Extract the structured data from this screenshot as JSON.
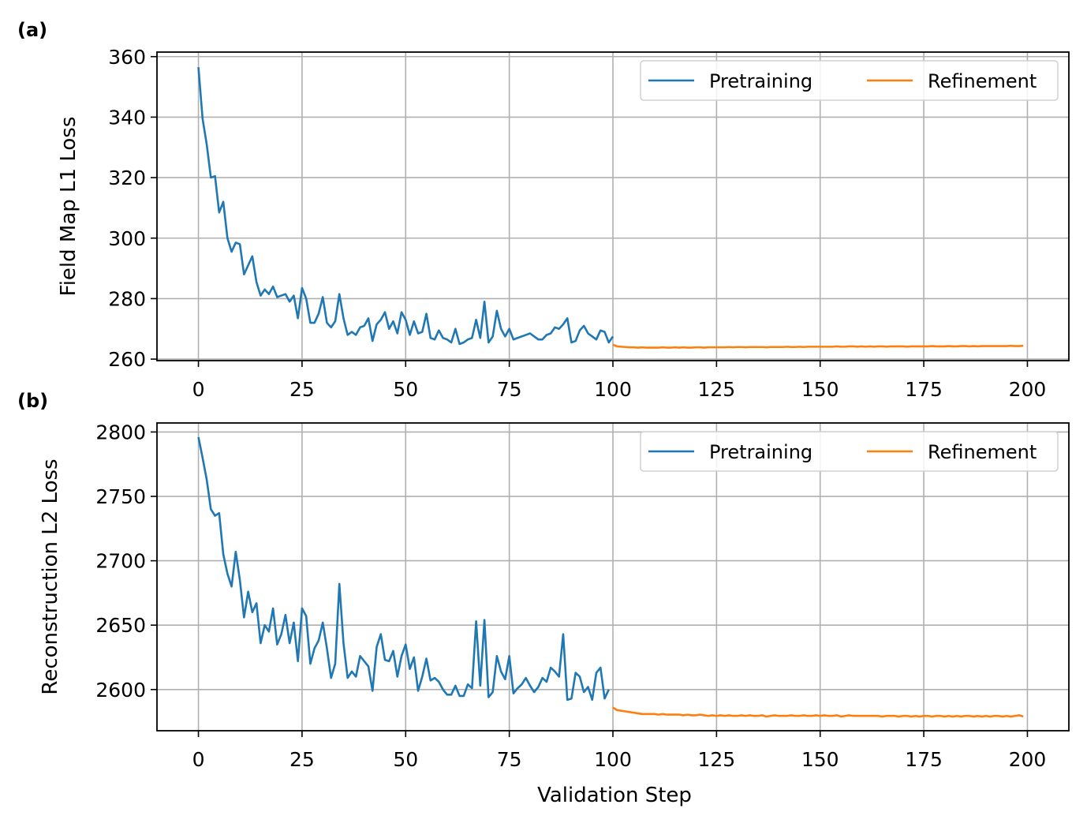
{
  "chart_data": [
    {
      "panel_label": "(a)",
      "type": "line",
      "title": "",
      "xlabel": "",
      "ylabel": "Field Map L1 Loss",
      "xlim": [
        -10,
        210
      ],
      "ylim": [
        259.5,
        361.5
      ],
      "xticks": [
        0,
        25,
        50,
        75,
        100,
        125,
        150,
        175,
        200
      ],
      "yticks": [
        260,
        280,
        300,
        320,
        340,
        360
      ],
      "grid": true,
      "legend": {
        "placement": "top-right",
        "columns": 2
      },
      "series": [
        {
          "name": "Pretraining",
          "color": "#1f77b4",
          "x_start": 0,
          "values": [
            356.5,
            339.5,
            331.0,
            320.0,
            320.5,
            308.5,
            312.0,
            300.0,
            295.5,
            298.5,
            298.0,
            288.0,
            291.0,
            294.0,
            285.5,
            281.0,
            283.0,
            281.5,
            284.0,
            280.5,
            281.0,
            281.5,
            279.0,
            281.0,
            273.5,
            283.5,
            280.0,
            272.0,
            272.0,
            275.0,
            280.5,
            272.0,
            270.5,
            272.5,
            281.5,
            273.5,
            268.0,
            269.0,
            268.0,
            270.5,
            271.0,
            273.5,
            266.0,
            271.5,
            273.0,
            275.5,
            270.0,
            272.5,
            268.5,
            275.5,
            273.0,
            268.0,
            272.5,
            268.5,
            269.0,
            275.0,
            267.0,
            266.5,
            269.5,
            267.0,
            266.5,
            265.5,
            270.0,
            265.0,
            265.5,
            266.5,
            267.0,
            273.0,
            267.0,
            279.0,
            265.5,
            267.5,
            276.0,
            270.0,
            267.5,
            270.0,
            266.5,
            267.0,
            267.5,
            268.0,
            268.5,
            267.5,
            266.5,
            266.5,
            268.0,
            268.5,
            270.5,
            270.0,
            271.5,
            273.5,
            265.5,
            266.0,
            269.5,
            271.0,
            268.5,
            267.5,
            266.5,
            269.5,
            269.0,
            265.5,
            267.5
          ]
        },
        {
          "name": "Refinement",
          "color": "#ff7f0e",
          "x_start": 100,
          "values": [
            264.8,
            264.2,
            264.1,
            264.0,
            263.9,
            263.9,
            263.8,
            263.9,
            263.8,
            263.8,
            263.8,
            263.8,
            263.9,
            263.8,
            263.8,
            263.9,
            263.8,
            263.9,
            263.8,
            263.8,
            263.9,
            263.9,
            263.8,
            263.9,
            263.9,
            263.9,
            263.9,
            263.9,
            264.0,
            263.9,
            264.0,
            264.0,
            263.9,
            264.0,
            264.0,
            264.0,
            264.0,
            263.9,
            264.0,
            264.0,
            264.0,
            264.0,
            264.1,
            264.0,
            264.0,
            264.1,
            264.0,
            264.1,
            264.1,
            264.1,
            264.1,
            264.1,
            264.1,
            264.1,
            264.2,
            264.1,
            264.1,
            264.2,
            264.2,
            264.1,
            264.2,
            264.1,
            264.2,
            264.1,
            264.2,
            264.2,
            264.1,
            264.2,
            264.2,
            264.2,
            264.2,
            264.1,
            264.2,
            264.2,
            264.2,
            264.2,
            264.2,
            264.3,
            264.2,
            264.2,
            264.2,
            264.3,
            264.2,
            264.2,
            264.3,
            264.3,
            264.2,
            264.3,
            264.2,
            264.3,
            264.3,
            264.3,
            264.3,
            264.3,
            264.3,
            264.3,
            264.4,
            264.3,
            264.3,
            264.4
          ]
        }
      ],
      "x_tick_labels": [
        "0",
        "25",
        "50",
        "75",
        "100",
        "125",
        "150",
        "175",
        "200"
      ],
      "y_tick_labels": [
        "260",
        "280",
        "300",
        "320",
        "340",
        "360"
      ]
    },
    {
      "panel_label": "(b)",
      "type": "line",
      "title": "",
      "xlabel": "Validation Step",
      "ylabel": "Reconstruction L2 Loss",
      "xlim": [
        -10,
        210
      ],
      "ylim": [
        2568,
        2807
      ],
      "xticks": [
        0,
        25,
        50,
        75,
        100,
        125,
        150,
        175,
        200
      ],
      "yticks": [
        2600,
        2650,
        2700,
        2750,
        2800
      ],
      "grid": true,
      "legend": {
        "placement": "top-right",
        "columns": 2
      },
      "series": [
        {
          "name": "Pretraining",
          "color": "#1f77b4",
          "x_start": 0,
          "values": [
            2796,
            2780,
            2763,
            2740,
            2735,
            2737,
            2705,
            2690,
            2680,
            2707,
            2685,
            2656,
            2676,
            2660,
            2667,
            2636,
            2650,
            2645,
            2663,
            2635,
            2643,
            2658,
            2636,
            2652,
            2622,
            2663,
            2657,
            2620,
            2632,
            2638,
            2652,
            2632,
            2609,
            2620,
            2682,
            2636,
            2609,
            2614,
            2610,
            2626,
            2622,
            2618,
            2599,
            2633,
            2643,
            2623,
            2622,
            2630,
            2610,
            2626,
            2635,
            2616,
            2625,
            2599,
            2610,
            2624,
            2607,
            2609,
            2606,
            2600,
            2596,
            2596,
            2603,
            2595,
            2595,
            2604,
            2601,
            2653,
            2603,
            2654,
            2594,
            2598,
            2626,
            2614,
            2608,
            2626,
            2597,
            2601,
            2604,
            2609,
            2603,
            2598,
            2602,
            2609,
            2606,
            2617,
            2614,
            2610,
            2643,
            2592,
            2593,
            2613,
            2610,
            2598,
            2602,
            2592,
            2613,
            2617,
            2593,
            2600
          ]
        },
        {
          "name": "Refinement",
          "color": "#ff7f0e",
          "x_start": 100,
          "values": [
            2586,
            2584,
            2583.5,
            2583,
            2582.5,
            2582,
            2581.5,
            2581,
            2581,
            2581,
            2581,
            2580.5,
            2581,
            2580.5,
            2580.5,
            2580.5,
            2580.5,
            2580,
            2580.5,
            2580,
            2580,
            2580.5,
            2580,
            2579.5,
            2580,
            2579.5,
            2580,
            2579.5,
            2580,
            2579.5,
            2579.5,
            2580,
            2579.5,
            2580,
            2579.5,
            2579.5,
            2580,
            2579,
            2579.5,
            2580,
            2579.5,
            2579.5,
            2579.5,
            2580,
            2579.5,
            2579.5,
            2580,
            2579.5,
            2579.5,
            2580,
            2579.5,
            2580,
            2579.5,
            2579.5,
            2580,
            2579,
            2579.5,
            2580,
            2579.5,
            2579.5,
            2579.5,
            2579.5,
            2579.5,
            2579.5,
            2579.5,
            2579,
            2579.5,
            2579.5,
            2579.5,
            2579,
            2579.5,
            2579.5,
            2579,
            2579.5,
            2579,
            2579.5,
            2579.5,
            2579,
            2579.5,
            2579.5,
            2579,
            2579.5,
            2579,
            2579.5,
            2579,
            2579.5,
            2579.5,
            2579,
            2579.5,
            2579,
            2579.5,
            2579,
            2579.5,
            2579.5,
            2579,
            2579.5,
            2579,
            2579.5,
            2580,
            2579
          ]
        }
      ],
      "x_tick_labels": [
        "0",
        "25",
        "50",
        "75",
        "100",
        "125",
        "150",
        "175",
        "200"
      ],
      "y_tick_labels": [
        "2600",
        "2650",
        "2700",
        "2750",
        "2800"
      ]
    }
  ]
}
